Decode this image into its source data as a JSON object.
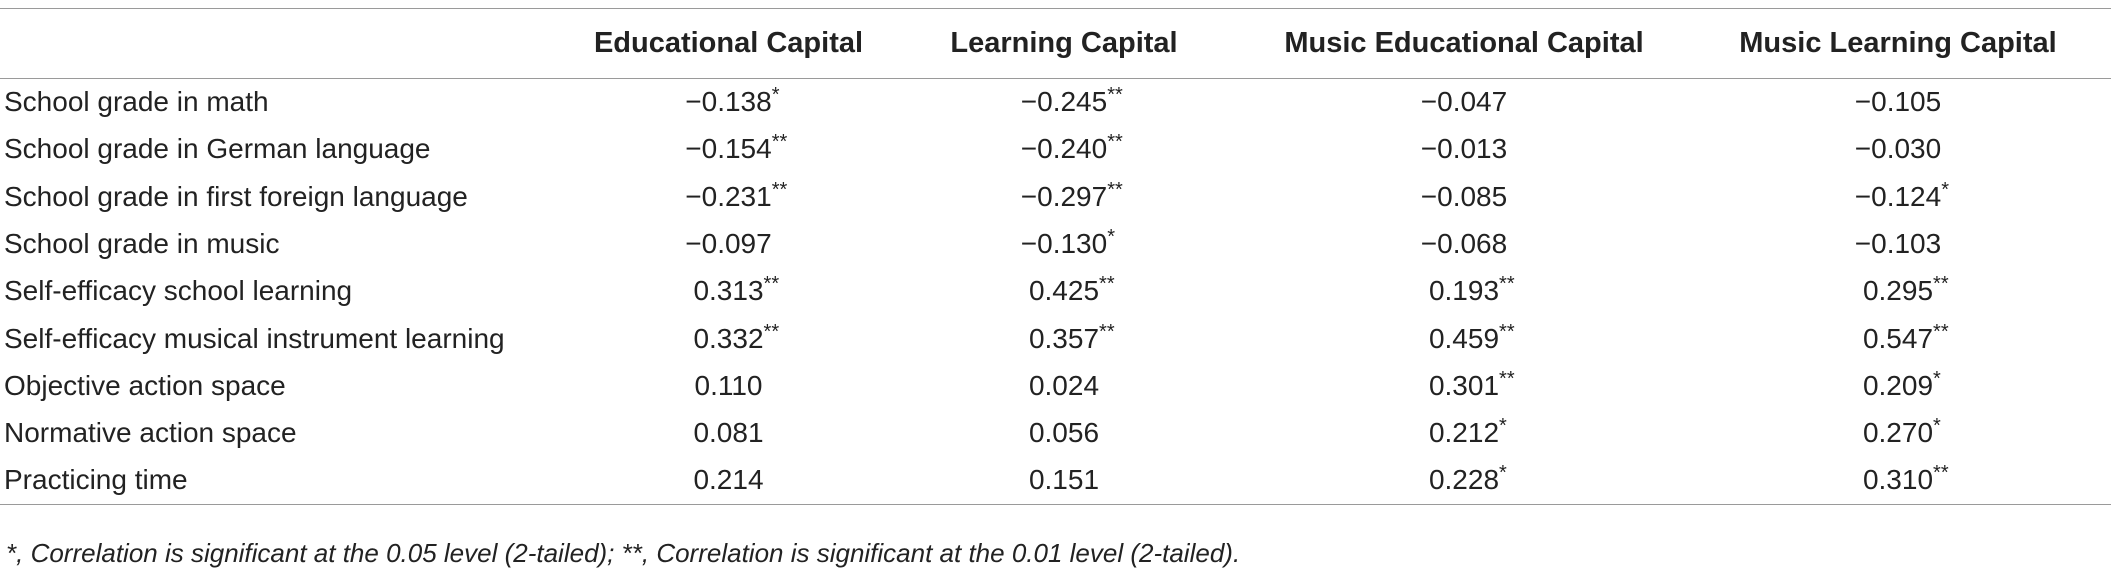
{
  "table": {
    "columns": [
      "",
      "Educational Capital",
      "Learning Capital",
      "Music Educational Capital",
      "Music Learning Capital"
    ],
    "rows": [
      {
        "label": "School grade in math",
        "cells": [
          {
            "value": "−0.138",
            "sig": "*"
          },
          {
            "value": "−0.245",
            "sig": "**"
          },
          {
            "value": "−0.047",
            "sig": ""
          },
          {
            "value": "−0.105",
            "sig": ""
          }
        ]
      },
      {
        "label": "School grade in German language",
        "cells": [
          {
            "value": "−0.154",
            "sig": "**"
          },
          {
            "value": "−0.240",
            "sig": "**"
          },
          {
            "value": "−0.013",
            "sig": ""
          },
          {
            "value": "−0.030",
            "sig": ""
          }
        ]
      },
      {
        "label": "School grade in first foreign language",
        "cells": [
          {
            "value": "−0.231",
            "sig": "**"
          },
          {
            "value": "−0.297",
            "sig": "**"
          },
          {
            "value": "−0.085",
            "sig": ""
          },
          {
            "value": "−0.124",
            "sig": "*"
          }
        ]
      },
      {
        "label": "School grade in music",
        "cells": [
          {
            "value": "−0.097",
            "sig": ""
          },
          {
            "value": "−0.130",
            "sig": "*"
          },
          {
            "value": "−0.068",
            "sig": ""
          },
          {
            "value": "−0.103",
            "sig": ""
          }
        ]
      },
      {
        "label": "Self-efficacy school learning",
        "cells": [
          {
            "value": "0.313",
            "sig": "**"
          },
          {
            "value": "0.425",
            "sig": "**"
          },
          {
            "value": "0.193",
            "sig": "**"
          },
          {
            "value": "0.295",
            "sig": "**"
          }
        ]
      },
      {
        "label": "Self-efficacy musical instrument learning",
        "cells": [
          {
            "value": "0.332",
            "sig": "**"
          },
          {
            "value": "0.357",
            "sig": "**"
          },
          {
            "value": "0.459",
            "sig": "**"
          },
          {
            "value": "0.547",
            "sig": "**"
          }
        ]
      },
      {
        "label": "Objective action space",
        "cells": [
          {
            "value": "0.110",
            "sig": ""
          },
          {
            "value": "0.024",
            "sig": ""
          },
          {
            "value": "0.301",
            "sig": "**"
          },
          {
            "value": "0.209",
            "sig": "*"
          }
        ]
      },
      {
        "label": "Normative action space",
        "cells": [
          {
            "value": "0.081",
            "sig": ""
          },
          {
            "value": "0.056",
            "sig": ""
          },
          {
            "value": "0.212",
            "sig": "*"
          },
          {
            "value": "0.270",
            "sig": "*"
          }
        ]
      },
      {
        "label": "Practicing time",
        "cells": [
          {
            "value": "0.214",
            "sig": ""
          },
          {
            "value": "0.151",
            "sig": ""
          },
          {
            "value": "0.228",
            "sig": "*"
          },
          {
            "value": "0.310",
            "sig": "**"
          }
        ]
      }
    ],
    "footnote": "*, Correlation is significant at the 0.05 level (2-tailed); **, Correlation is significant at the 0.01 level (2-tailed)."
  }
}
